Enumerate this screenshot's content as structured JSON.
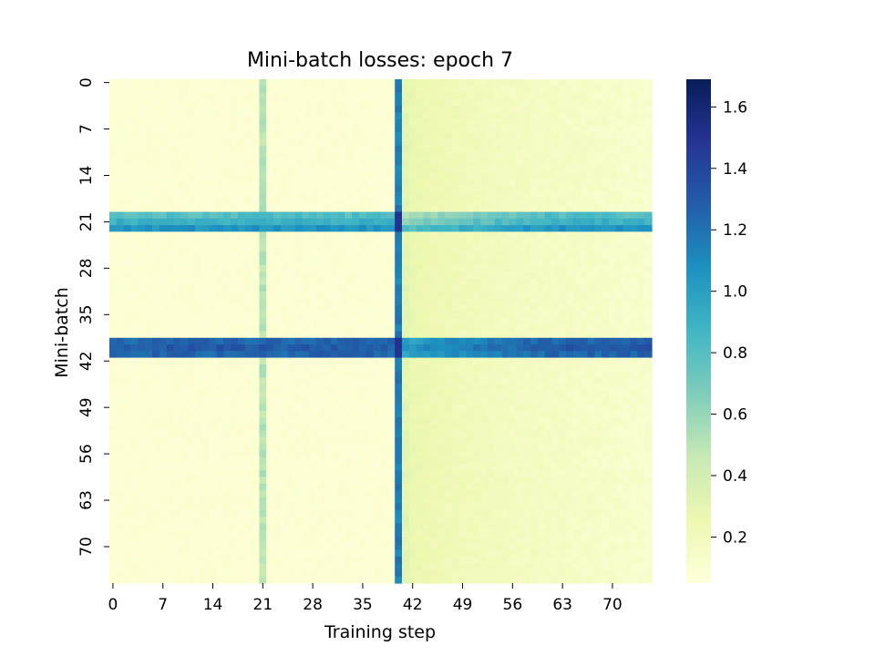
{
  "chart_data": {
    "type": "heatmap",
    "title": "Mini-batch losses: epoch 7",
    "xlabel": "Training step",
    "ylabel": "Mini-batch",
    "n_cols": 76,
    "n_rows": 76,
    "x_ticks": [
      0,
      7,
      14,
      21,
      28,
      35,
      42,
      49,
      56,
      63,
      70
    ],
    "y_ticks": [
      0,
      7,
      14,
      21,
      28,
      35,
      42,
      49,
      56,
      63,
      70
    ],
    "colorbar": {
      "colormap": "YlGnBu",
      "vmin": 0.05,
      "vmax": 1.69,
      "ticks": [
        "0.2",
        "0.4",
        "0.6",
        "0.8",
        "1.0",
        "1.2",
        "1.4",
        "1.6"
      ]
    },
    "pattern": {
      "background_loss": 0.08,
      "high_loss_rows": [
        {
          "row": 20,
          "loss": 0.8
        },
        {
          "row": 21,
          "loss": 0.9
        },
        {
          "row": 22,
          "loss": 1.05
        },
        {
          "row": 39,
          "loss": 1.25
        },
        {
          "row": 40,
          "loss": 1.3
        },
        {
          "row": 41,
          "loss": 1.25
        }
      ],
      "high_loss_cols": [
        {
          "col": 21,
          "loss": 0.5
        },
        {
          "col": 40,
          "loss": 1.15
        }
      ],
      "post_spike_region": {
        "from_col": 41,
        "to_col": 75,
        "start_loss": 0.3,
        "end_loss": 0.12
      }
    }
  }
}
